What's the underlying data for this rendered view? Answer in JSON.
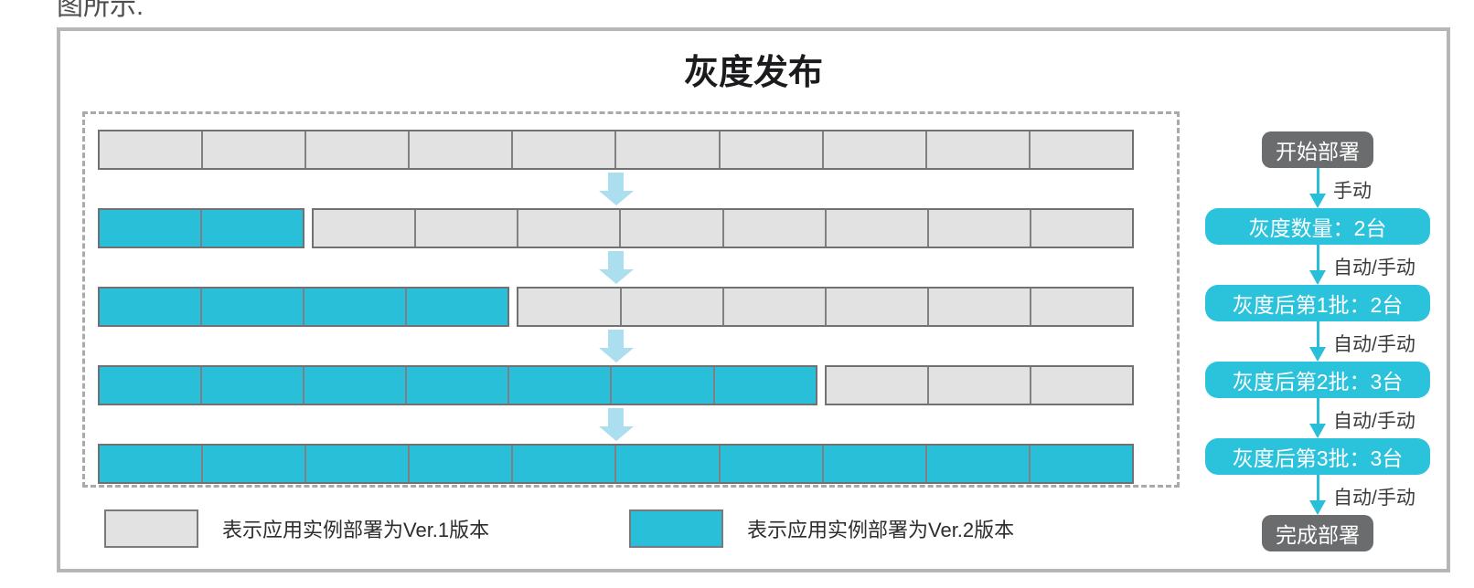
{
  "page": {
    "intro_text": "图所示."
  },
  "title": "灰度发布",
  "grid": {
    "instances_per_row": 10,
    "rows": [
      {
        "ver2": 0,
        "ver1": 10
      },
      {
        "ver2": 2,
        "ver1": 8
      },
      {
        "ver2": 4,
        "ver1": 6
      },
      {
        "ver2": 7,
        "ver1": 3
      },
      {
        "ver2": 10,
        "ver1": 0
      }
    ]
  },
  "flow": {
    "steps": [
      {
        "label": "开始部署",
        "style": "dark"
      },
      {
        "label": "灰度数量：2台",
        "style": "cyan"
      },
      {
        "label": "灰度后第1批：2台",
        "style": "cyan"
      },
      {
        "label": "灰度后第2批：3台",
        "style": "cyan"
      },
      {
        "label": "灰度后第3批：3台",
        "style": "cyan"
      },
      {
        "label": "完成部署",
        "style": "dark"
      }
    ],
    "connector_labels": [
      "手动",
      "自动/手动",
      "自动/手动",
      "自动/手动",
      "自动/手动"
    ]
  },
  "legend": {
    "items": [
      {
        "version": "ver1",
        "label": "表示应用实例部署为Ver.1版本"
      },
      {
        "version": "ver2",
        "label": "表示应用实例部署为Ver.2版本"
      }
    ]
  },
  "colors": {
    "ver1_fill": "#e2e2e3",
    "ver2_fill": "#2abfd9",
    "badge_cyan": "#2bc2dc",
    "badge_dark": "#6b6c6e",
    "pale_arrow": "#abdeee",
    "flow_arrow": "#29bfd9"
  }
}
